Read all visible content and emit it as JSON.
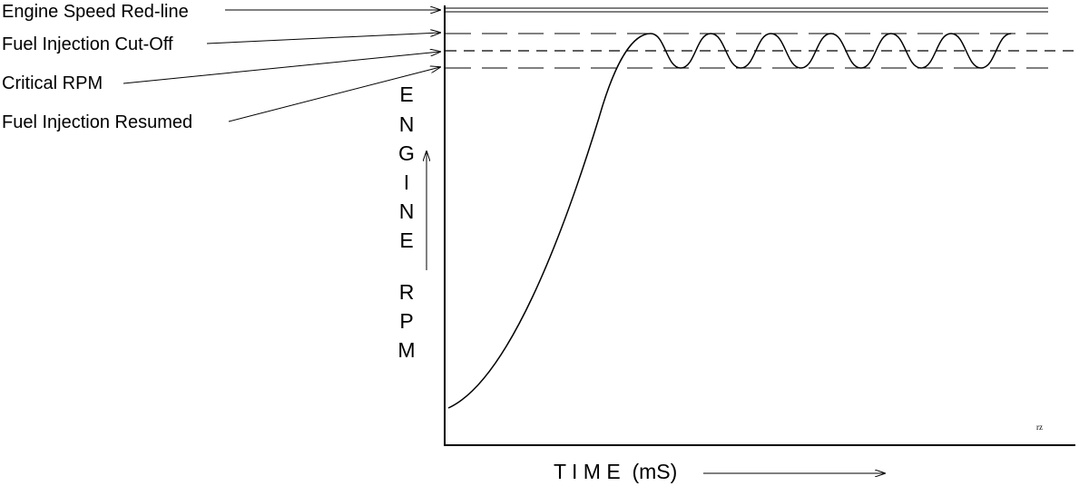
{
  "labels": {
    "redline": "Engine Speed Red-line",
    "cutoff": "Fuel Injection Cut-Off",
    "critical": "Critical RPM",
    "resumed": "Fuel Injection Resumed"
  },
  "y_axis_letters": [
    "E",
    "N",
    "G",
    "I",
    "N",
    "E",
    "R",
    "P",
    "M"
  ],
  "x_axis_label": "T I M E  (mS)",
  "signature": "rz",
  "colors": {
    "ink": "#000000",
    "background": "#ffffff"
  }
}
